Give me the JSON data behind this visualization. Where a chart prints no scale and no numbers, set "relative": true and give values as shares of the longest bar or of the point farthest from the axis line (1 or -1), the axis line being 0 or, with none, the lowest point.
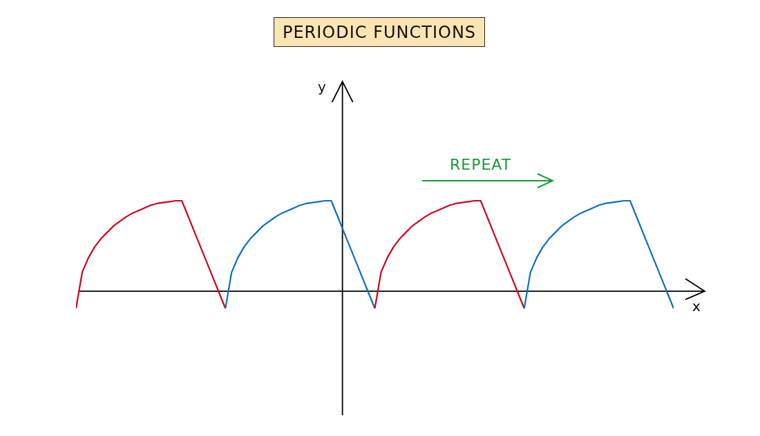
{
  "chart_data": {
    "type": "line",
    "title": "PERIODIC FUNCTIONS",
    "xlabel": "x",
    "relative": true,
    "marker": "none",
    "legend": false,
    "annotations": [
      "y",
      "REPEAT"
    ],
    "categories": [
      null,
      null,
      null,
      null,
      null,
      null,
      null,
      null,
      null,
      null,
      null,
      null,
      null,
      null,
      null,
      null,
      null,
      null,
      null,
      null,
      null,
      null,
      null,
      null,
      null,
      null,
      null,
      null,
      null,
      null,
      null,
      null,
      null,
      null,
      null,
      null,
      null,
      null,
      null,
      null,
      null,
      null,
      null,
      null,
      null,
      null,
      null,
      null,
      null,
      null,
      null,
      null,
      null,
      null,
      null,
      null,
      null,
      null,
      null,
      null,
      null,
      null,
      null,
      null,
      null,
      null,
      null,
      null,
      null,
      null,
      null,
      null,
      null,
      null,
      null,
      null,
      null,
      null,
      null,
      null,
      null,
      null,
      null,
      null,
      null,
      null,
      null,
      null,
      null,
      null,
      null,
      null,
      null,
      null,
      null,
      null,
      null
    ],
    "series": [
      {
        "color": "#d0021b",
        "values": [
          -0.19,
          0.21,
          0.37,
          0.49,
          0.58,
          0.65,
          0.72,
          0.77,
          0.82,
          0.86,
          0.89,
          0.92,
          0.95,
          0.97,
          0.98,
          0.99,
          1.0,
          1.0,
          0.83,
          0.66,
          0.49,
          0.32,
          0.15,
          -0.02,
          -0.19,
          null,
          null,
          null,
          null,
          null,
          null,
          null,
          null,
          null,
          null,
          null,
          null,
          null,
          null,
          null,
          null,
          null,
          null,
          null,
          null,
          null,
          null,
          null,
          null,
          null,
          null,
          null,
          null,
          null,
          null,
          null,
          null,
          null,
          null,
          null,
          null,
          null,
          null,
          null,
          null,
          null,
          null,
          null,
          null,
          null,
          null,
          null,
          null,
          null,
          null,
          null,
          null,
          null,
          null,
          null,
          null,
          null,
          null,
          null,
          null,
          null,
          null,
          null,
          null,
          null,
          null,
          null,
          null,
          null,
          null,
          null,
          null
        ]
      },
      {
        "color": "#0a6ebd",
        "values": [
          null,
          null,
          null,
          null,
          null,
          null,
          null,
          null,
          null,
          null,
          null,
          null,
          null,
          null,
          null,
          null,
          null,
          null,
          null,
          null,
          null,
          null,
          null,
          null,
          -0.19,
          0.21,
          0.37,
          0.49,
          0.58,
          0.65,
          0.72,
          0.77,
          0.82,
          0.86,
          0.89,
          0.92,
          0.95,
          0.97,
          0.98,
          0.99,
          1.0,
          1.0,
          0.83,
          0.66,
          0.49,
          0.32,
          0.15,
          -0.02,
          -0.19,
          null,
          null,
          null,
          null,
          null,
          null,
          null,
          null,
          null,
          null,
          null,
          null,
          null,
          null,
          null,
          null,
          null,
          null,
          null,
          null,
          null,
          null,
          null,
          null,
          null,
          null,
          null,
          null,
          null,
          null,
          null,
          null,
          null,
          null,
          null,
          null,
          null,
          null,
          null,
          null,
          null,
          null,
          null,
          null,
          null,
          null,
          null,
          null
        ]
      },
      {
        "color": "#d0021b",
        "values": [
          null,
          null,
          null,
          null,
          null,
          null,
          null,
          null,
          null,
          null,
          null,
          null,
          null,
          null,
          null,
          null,
          null,
          null,
          null,
          null,
          null,
          null,
          null,
          null,
          null,
          null,
          null,
          null,
          null,
          null,
          null,
          null,
          null,
          null,
          null,
          null,
          null,
          null,
          null,
          null,
          null,
          null,
          null,
          null,
          null,
          null,
          null,
          null,
          -0.19,
          0.21,
          0.37,
          0.49,
          0.58,
          0.65,
          0.72,
          0.77,
          0.82,
          0.86,
          0.89,
          0.92,
          0.95,
          0.97,
          0.98,
          0.99,
          1.0,
          1.0,
          0.83,
          0.66,
          0.49,
          0.32,
          0.15,
          -0.02,
          -0.19,
          null,
          null,
          null,
          null,
          null,
          null,
          null,
          null,
          null,
          null,
          null,
          null,
          null,
          null,
          null,
          null,
          null,
          null,
          null,
          null,
          null,
          null,
          null,
          null
        ]
      },
      {
        "color": "#0a6ebd",
        "values": [
          null,
          null,
          null,
          null,
          null,
          null,
          null,
          null,
          null,
          null,
          null,
          null,
          null,
          null,
          null,
          null,
          null,
          null,
          null,
          null,
          null,
          null,
          null,
          null,
          null,
          null,
          null,
          null,
          null,
          null,
          null,
          null,
          null,
          null,
          null,
          null,
          null,
          null,
          null,
          null,
          null,
          null,
          null,
          null,
          null,
          null,
          null,
          null,
          null,
          null,
          null,
          null,
          null,
          null,
          null,
          null,
          null,
          null,
          null,
          null,
          null,
          null,
          null,
          null,
          null,
          null,
          null,
          null,
          null,
          null,
          null,
          null,
          -0.19,
          0.21,
          0.37,
          0.49,
          0.58,
          0.65,
          0.72,
          0.77,
          0.82,
          0.86,
          0.89,
          0.92,
          0.95,
          0.97,
          0.98,
          0.99,
          1.0,
          1.0,
          0.83,
          0.66,
          0.49,
          0.32,
          0.15,
          -0.02,
          -0.19
        ]
      }
    ]
  }
}
